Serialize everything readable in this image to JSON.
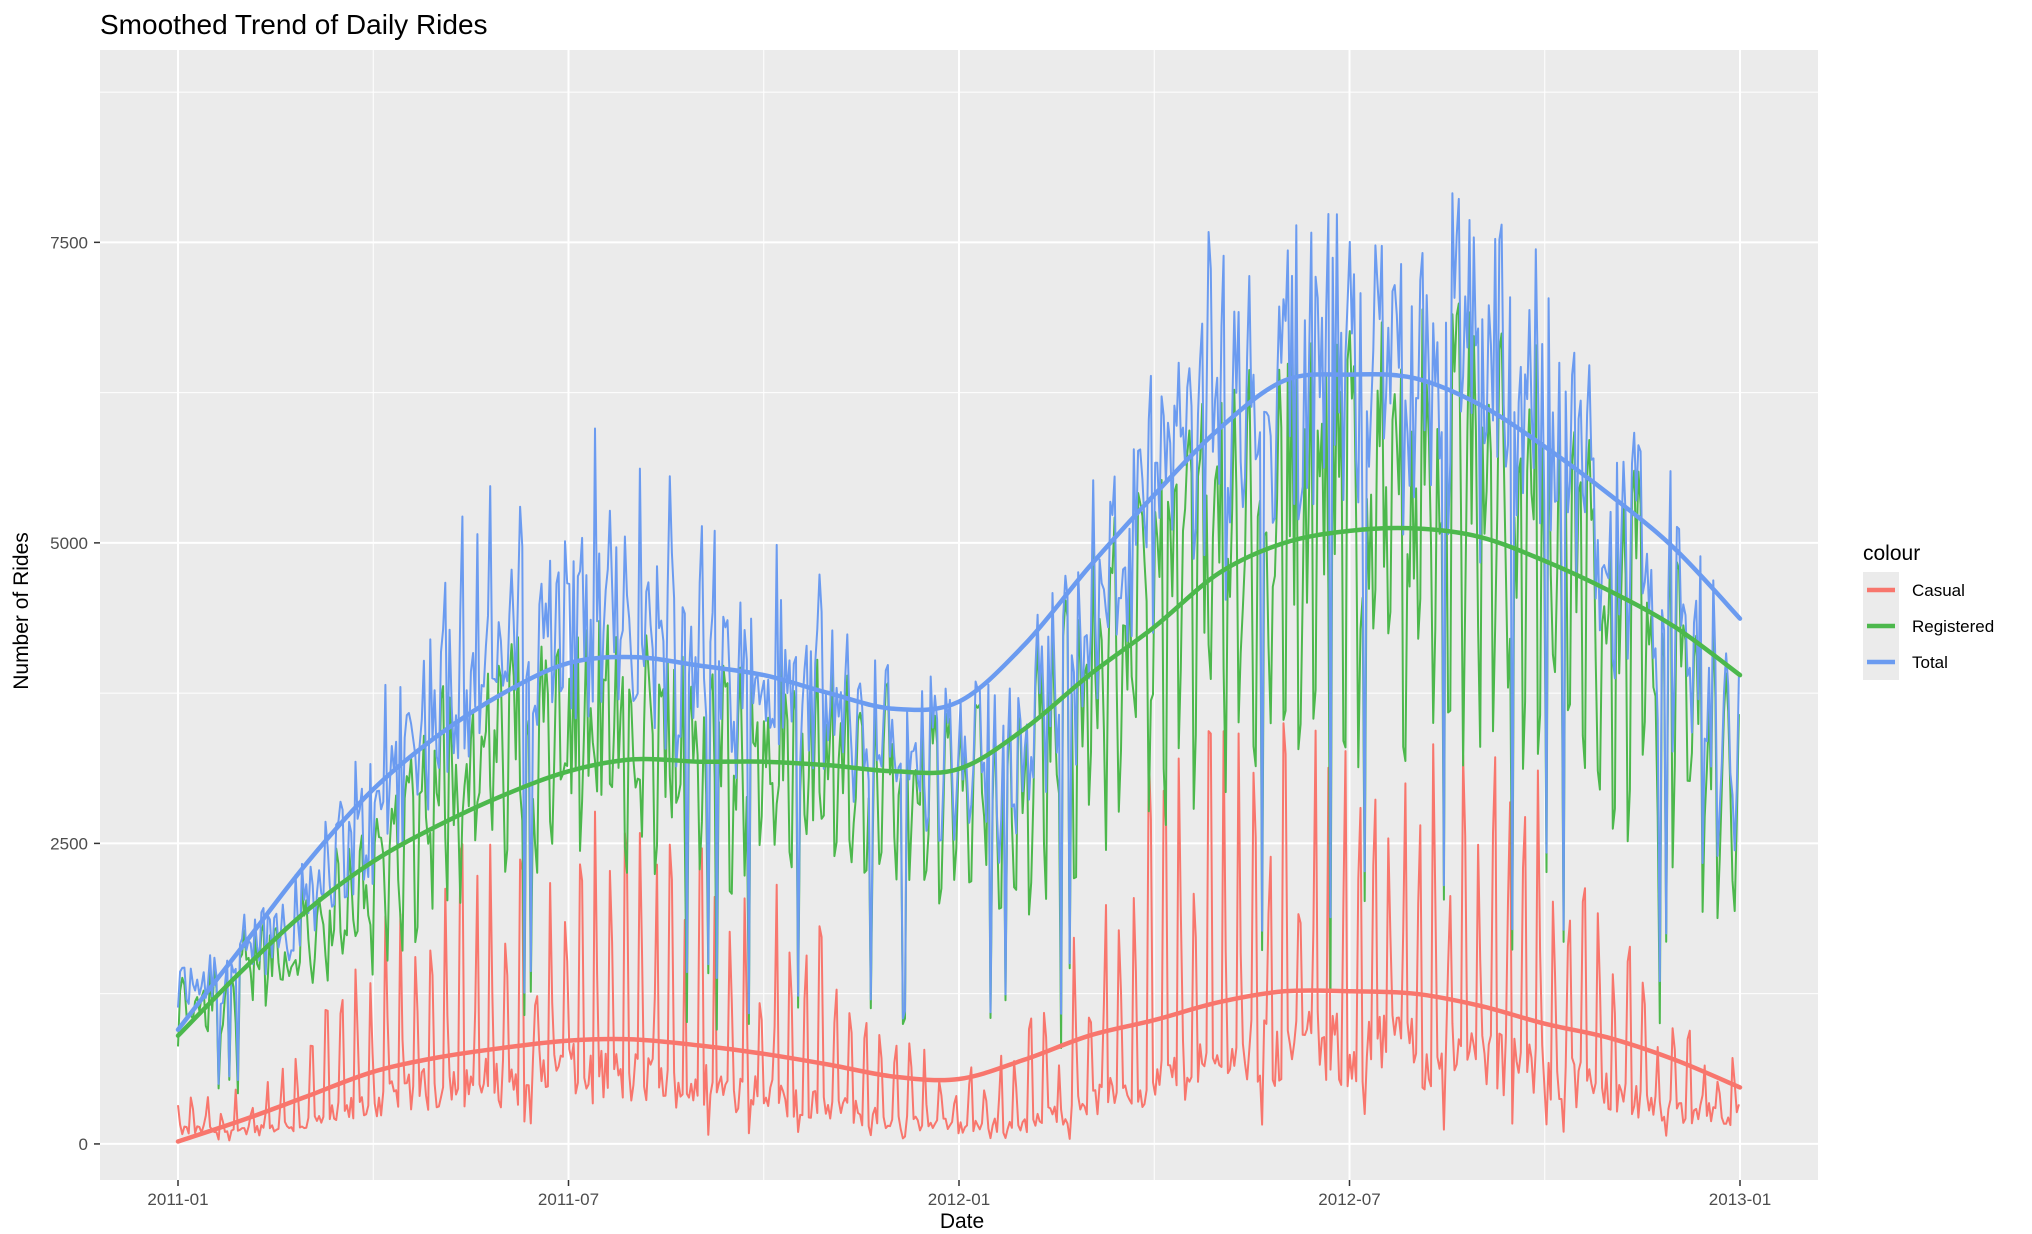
{
  "chart_data": {
    "type": "line",
    "title": "Smoothed Trend of Daily Rides",
    "xlabel": "Date",
    "ylabel": "Number of Rides",
    "x_tick_labels": [
      "2011-01",
      "2011-07",
      "2012-01",
      "2012-07",
      "2013-01"
    ],
    "y_tick_labels": [
      "0",
      "2500",
      "5000",
      "7500"
    ],
    "ylim": [
      -300,
      9100
    ],
    "xlim_months": [
      -2,
      25
    ],
    "grid": true,
    "legend_title": "colour",
    "legend_position": "right",
    "colors": {
      "Casual": "#f8766d",
      "Registered": "#4cb84c",
      "Total": "#6b9bf0",
      "panel": "#ebebeb",
      "grid": "#ffffff"
    },
    "series": [
      {
        "name": "Casual",
        "color": "#f8766d",
        "daily_profile": {
          "x_months": [
            0,
            1,
            2,
            3,
            4,
            5,
            6,
            7,
            8,
            9,
            10,
            11,
            12,
            13,
            14,
            15,
            16,
            17,
            18,
            19,
            20,
            21,
            22,
            23,
            24
          ],
          "weekday": [
            120,
            110,
            180,
            350,
            500,
            550,
            620,
            580,
            520,
            450,
            320,
            200,
            150,
            170,
            350,
            550,
            750,
            820,
            820,
            800,
            760,
            650,
            450,
            300,
            250
          ],
          "weekend": [
            300,
            350,
            700,
            1300,
            1900,
            1950,
            2100,
            2000,
            1900,
            1750,
            1300,
            700,
            500,
            700,
            1500,
            2500,
            2900,
            2800,
            2700,
            2650,
            2600,
            2300,
            1500,
            900,
            500
          ]
        },
        "smooth": {
          "x_months": [
            0,
            1,
            2,
            3,
            4,
            5,
            6,
            7,
            8,
            9,
            10,
            11,
            12,
            13,
            14,
            15,
            16,
            17,
            18,
            19,
            20,
            21,
            22,
            23,
            24
          ],
          "y": [
            20,
            200,
            400,
            600,
            720,
            800,
            860,
            870,
            820,
            750,
            660,
            560,
            540,
            700,
            900,
            1030,
            1180,
            1270,
            1270,
            1250,
            1150,
            1000,
            880,
            700,
            470
          ]
        }
      },
      {
        "name": "Registered",
        "color": "#4cb84c",
        "daily_profile": {
          "x_months": [
            0,
            1,
            2,
            3,
            4,
            5,
            6,
            7,
            8,
            9,
            10,
            11,
            12,
            13,
            14,
            15,
            16,
            17,
            18,
            19,
            20,
            21,
            22,
            23,
            24
          ],
          "weekday": [
            1200,
            1500,
            1900,
            2400,
            3300,
            3600,
            3700,
            3700,
            3600,
            3500,
            3400,
            3300,
            3100,
            3400,
            4300,
            4800,
            5400,
            5700,
            5800,
            5900,
            6000,
            5600,
            5000,
            4500,
            3200
          ],
          "weekend": [
            900,
            1200,
            1500,
            1600,
            2400,
            2600,
            2800,
            2800,
            2700,
            2600,
            2500,
            2300,
            2300,
            2400,
            2900,
            3300,
            3700,
            3900,
            4000,
            4000,
            4000,
            3700,
            3200,
            2800,
            1800
          ]
        },
        "smooth": {
          "x_months": [
            0,
            1,
            2,
            3,
            4,
            5,
            6,
            7,
            8,
            9,
            10,
            11,
            12,
            13,
            14,
            15,
            16,
            17,
            18,
            19,
            20,
            21,
            22,
            23,
            24
          ],
          "y": [
            900,
            1450,
            1950,
            2350,
            2650,
            2900,
            3100,
            3200,
            3180,
            3180,
            3150,
            3100,
            3120,
            3450,
            3900,
            4300,
            4750,
            5000,
            5100,
            5120,
            5050,
            4850,
            4600,
            4300,
            3900
          ]
        }
      },
      {
        "name": "Total",
        "color": "#6b9bf0",
        "smooth": {
          "x_months": [
            0,
            1,
            2,
            3,
            4,
            5,
            6,
            7,
            8,
            9,
            10,
            11,
            12,
            13,
            14,
            15,
            16,
            17,
            18,
            19,
            20,
            21,
            22,
            23,
            24
          ],
          "y": [
            950,
            1650,
            2350,
            2950,
            3400,
            3750,
            4000,
            4050,
            3980,
            3900,
            3750,
            3620,
            3680,
            4150,
            4800,
            5400,
            5950,
            6350,
            6400,
            6370,
            6150,
            5800,
            5400,
            4950,
            4370
          ]
        }
      }
    ]
  }
}
